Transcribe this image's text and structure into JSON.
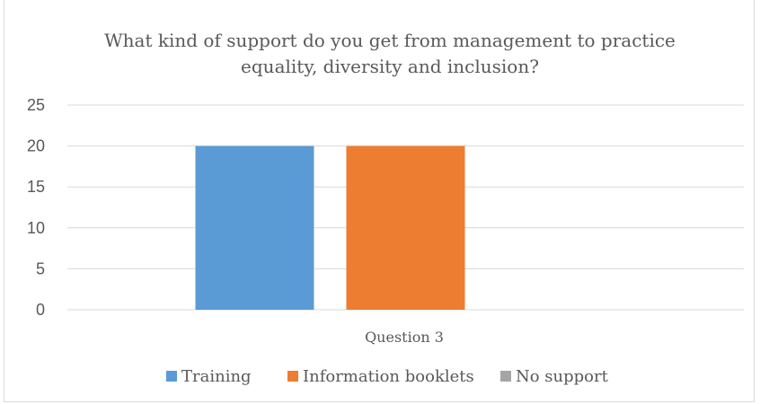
{
  "chart_data": {
    "type": "bar",
    "title_lines": [
      "What kind of support do you get from management to practice",
      "equality, diversity and inclusion?"
    ],
    "categories": [
      "Question 3"
    ],
    "series": [
      {
        "name": "Training",
        "values": [
          20
        ],
        "color": "#5b9bd5"
      },
      {
        "name": "Information booklets",
        "values": [
          20
        ],
        "color": "#ed7d31"
      },
      {
        "name": "No support",
        "values": [
          0
        ],
        "color": "#a5a5a5"
      }
    ],
    "ylim": [
      0,
      25
    ],
    "yticks": [
      0,
      5,
      10,
      15,
      20,
      25
    ],
    "grid": true,
    "legend_position": "bottom"
  }
}
